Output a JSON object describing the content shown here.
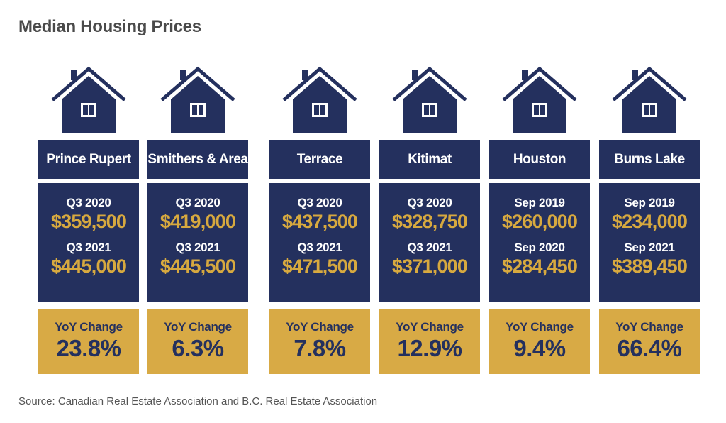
{
  "title": "Median Housing Prices",
  "source": "Source: Canadian Real Estate Association and B.C. Real Estate Association",
  "colors": {
    "navy": "#24305e",
    "gold": "#d8aa45",
    "price_gold": "#d7a93f"
  },
  "icons": {
    "house": "house-icon"
  },
  "chart_data": {
    "type": "table",
    "title": "Median Housing Prices",
    "columns": [
      {
        "name": "Prince Rupert",
        "period1": "Q3 2020",
        "price1": "$359,500",
        "period2": "Q3 2021",
        "price2": "$445,000",
        "yoy_label": "YoY Change",
        "yoy": "23.8%"
      },
      {
        "name": "Smithers & Area",
        "period1": "Q3 2020",
        "price1": "$419,000",
        "period2": "Q3 2021",
        "price2": "$445,500",
        "yoy_label": "YoY Change",
        "yoy": "6.3%"
      },
      {
        "name": "Terrace",
        "period1": "Q3 2020",
        "price1": "$437,500",
        "period2": "Q3 2021",
        "price2": "$471,500",
        "yoy_label": "YoY Change",
        "yoy": "7.8%"
      },
      {
        "name": "Kitimat",
        "period1": "Q3 2020",
        "price1": "$328,750",
        "period2": "Q3 2021",
        "price2": "$371,000",
        "yoy_label": "YoY Change",
        "yoy": "12.9%"
      },
      {
        "name": "Houston",
        "period1": "Sep 2019",
        "price1": "$260,000",
        "period2": "Sep 2020",
        "price2": "$284,450",
        "yoy_label": "YoY Change",
        "yoy": "9.4%"
      },
      {
        "name": "Burns Lake",
        "period1": "Sep 2019",
        "price1": "$234,000",
        "period2": "Sep 2021",
        "price2": "$389,450",
        "yoy_label": "YoY Change",
        "yoy": "66.4%"
      }
    ]
  }
}
